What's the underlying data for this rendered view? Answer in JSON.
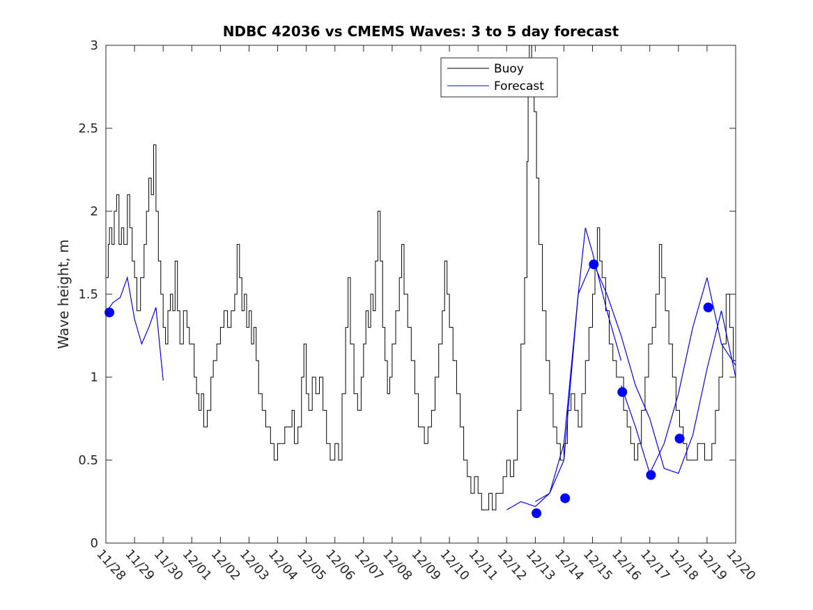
{
  "chart_data": {
    "type": "line",
    "title": "NDBC 42036 vs CMEMS Waves: 3 to 5 day forecast",
    "xlabel": "",
    "ylabel": "Wave height, m",
    "xlim": [
      "11/28",
      "12/20"
    ],
    "ylim": [
      0,
      3
    ],
    "x_ticks": [
      "11/28",
      "11/29",
      "11/30",
      "12/01",
      "12/02",
      "12/03",
      "12/04",
      "12/05",
      "12/06",
      "12/07",
      "12/08",
      "12/09",
      "12/10",
      "12/11",
      "12/12",
      "12/13",
      "12/14",
      "12/15",
      "12/16",
      "12/17",
      "12/18",
      "12/19",
      "12/20"
    ],
    "y_ticks": [
      "0",
      "0.5",
      "1",
      "1.5",
      "2",
      "2.5",
      "3"
    ],
    "grid": false,
    "legend_position": "top-right",
    "series": [
      {
        "name": "Buoy",
        "color": "#000000",
        "points": [
          [
            "11/28 00:00",
            1.6
          ],
          [
            "11/28 02:00",
            1.8
          ],
          [
            "11/28 03:00",
            1.9
          ],
          [
            "11/28 05:00",
            1.8
          ],
          [
            "11/28 07:00",
            2.0
          ],
          [
            "11/28 09:00",
            2.1
          ],
          [
            "11/28 11:00",
            1.8
          ],
          [
            "11/28 13:00",
            1.9
          ],
          [
            "11/28 15:00",
            1.8
          ],
          [
            "11/28 18:00",
            2.1
          ],
          [
            "11/28 20:00",
            1.9
          ],
          [
            "11/28 22:00",
            1.7
          ],
          [
            "11/29 00:00",
            1.6
          ],
          [
            "11/29 02:00",
            1.4
          ],
          [
            "11/29 05:00",
            1.6
          ],
          [
            "11/29 08:00",
            1.8
          ],
          [
            "11/29 10:00",
            2.0
          ],
          [
            "11/29 12:00",
            2.2
          ],
          [
            "11/29 14:00",
            2.1
          ],
          [
            "11/29 16:00",
            2.4
          ],
          [
            "11/29 18:00",
            2.0
          ],
          [
            "11/29 20:00",
            1.7
          ],
          [
            "11/29 22:00",
            1.5
          ],
          [
            "11/30 00:00",
            1.3
          ],
          [
            "11/30 02:00",
            1.2
          ],
          [
            "11/30 04:00",
            1.4
          ],
          [
            "11/30 06:00",
            1.5
          ],
          [
            "11/30 08:00",
            1.4
          ],
          [
            "11/30 10:00",
            1.7
          ],
          [
            "11/30 12:00",
            1.4
          ],
          [
            "11/30 14:00",
            1.2
          ],
          [
            "11/30 17:00",
            1.4
          ],
          [
            "11/30 20:00",
            1.3
          ],
          [
            "11/30 22:00",
            1.2
          ],
          [
            "12/01 00:00",
            1.2
          ],
          [
            "12/01 02:00",
            1.0
          ],
          [
            "12/01 04:00",
            0.9
          ],
          [
            "12/01 06:00",
            0.8
          ],
          [
            "12/01 08:00",
            0.9
          ],
          [
            "12/01 10:00",
            0.7
          ],
          [
            "12/01 13:00",
            0.8
          ],
          [
            "12/01 16:00",
            1.0
          ],
          [
            "12/01 18:00",
            1.1
          ],
          [
            "12/01 21:00",
            1.2
          ],
          [
            "12/02 00:00",
            1.3
          ],
          [
            "12/02 03:00",
            1.4
          ],
          [
            "12/02 06:00",
            1.3
          ],
          [
            "12/02 09:00",
            1.4
          ],
          [
            "12/02 12:00",
            1.5
          ],
          [
            "12/02 14:00",
            1.8
          ],
          [
            "12/02 16:00",
            1.6
          ],
          [
            "12/02 18:00",
            1.4
          ],
          [
            "12/02 20:00",
            1.5
          ],
          [
            "12/02 22:00",
            1.3
          ],
          [
            "12/03 00:00",
            1.4
          ],
          [
            "12/03 02:00",
            1.2
          ],
          [
            "12/03 04:00",
            1.3
          ],
          [
            "12/03 06:00",
            1.1
          ],
          [
            "12/03 08:00",
            0.9
          ],
          [
            "12/03 11:00",
            0.8
          ],
          [
            "12/03 14:00",
            0.7
          ],
          [
            "12/03 18:00",
            0.6
          ],
          [
            "12/03 21:00",
            0.5
          ],
          [
            "12/04 00:00",
            0.6
          ],
          [
            "12/04 03:00",
            0.6
          ],
          [
            "12/04 06:00",
            0.7
          ],
          [
            "12/04 09:00",
            0.7
          ],
          [
            "12/04 12:00",
            0.8
          ],
          [
            "12/04 14:00",
            0.6
          ],
          [
            "12/04 17:00",
            0.7
          ],
          [
            "12/04 20:00",
            1.0
          ],
          [
            "12/04 22:00",
            1.2
          ],
          [
            "12/05 00:00",
            0.9
          ],
          [
            "12/05 02:00",
            0.8
          ],
          [
            "12/05 05:00",
            1.0
          ],
          [
            "12/05 08:00",
            0.9
          ],
          [
            "12/05 11:00",
            1.0
          ],
          [
            "12/05 14:00",
            0.8
          ],
          [
            "12/05 17:00",
            0.6
          ],
          [
            "12/05 20:00",
            0.5
          ],
          [
            "12/06 00:00",
            0.6
          ],
          [
            "12/06 03:00",
            0.5
          ],
          [
            "12/06 06:00",
            0.9
          ],
          [
            "12/06 09:00",
            1.3
          ],
          [
            "12/06 11:00",
            1.6
          ],
          [
            "12/06 13:00",
            1.2
          ],
          [
            "12/06 16:00",
            0.9
          ],
          [
            "12/06 19:00",
            0.8
          ],
          [
            "12/06 22:00",
            1.0
          ],
          [
            "12/07 00:00",
            1.2
          ],
          [
            "12/07 02:00",
            1.4
          ],
          [
            "12/07 04:00",
            1.3
          ],
          [
            "12/07 06:00",
            1.5
          ],
          [
            "12/07 08:00",
            1.4
          ],
          [
            "12/07 10:00",
            1.7
          ],
          [
            "12/07 12:00",
            2.0
          ],
          [
            "12/07 14:00",
            1.7
          ],
          [
            "12/07 16:00",
            1.3
          ],
          [
            "12/07 18:00",
            1.1
          ],
          [
            "12/07 20:00",
            0.9
          ],
          [
            "12/07 22:00",
            1.0
          ],
          [
            "12/08 00:00",
            1.2
          ],
          [
            "12/08 03:00",
            1.4
          ],
          [
            "12/08 06:00",
            1.6
          ],
          [
            "12/08 08:00",
            1.8
          ],
          [
            "12/08 10:00",
            1.5
          ],
          [
            "12/08 13:00",
            1.3
          ],
          [
            "12/08 16:00",
            1.1
          ],
          [
            "12/08 19:00",
            0.9
          ],
          [
            "12/08 22:00",
            0.7
          ],
          [
            "12/09 00:00",
            0.7
          ],
          [
            "12/09 03:00",
            0.6
          ],
          [
            "12/09 06:00",
            0.7
          ],
          [
            "12/09 09:00",
            0.8
          ],
          [
            "12/09 12:00",
            1.0
          ],
          [
            "12/09 15:00",
            1.2
          ],
          [
            "12/09 18:00",
            1.4
          ],
          [
            "12/09 20:00",
            1.7
          ],
          [
            "12/09 22:00",
            1.5
          ],
          [
            "12/10 00:00",
            1.3
          ],
          [
            "12/10 03:00",
            1.1
          ],
          [
            "12/10 06:00",
            0.9
          ],
          [
            "12/10 09:00",
            0.7
          ],
          [
            "12/10 12:00",
            0.5
          ],
          [
            "12/10 15:00",
            0.4
          ],
          [
            "12/10 18:00",
            0.3
          ],
          [
            "12/10 21:00",
            0.4
          ],
          [
            "12/11 00:00",
            0.3
          ],
          [
            "12/11 03:00",
            0.2
          ],
          [
            "12/11 06:00",
            0.2
          ],
          [
            "12/11 09:00",
            0.3
          ],
          [
            "12/11 12:00",
            0.2
          ],
          [
            "12/11 15:00",
            0.3
          ],
          [
            "12/11 18:00",
            0.3
          ],
          [
            "12/11 21:00",
            0.4
          ],
          [
            "12/12 00:00",
            0.5
          ],
          [
            "12/12 03:00",
            0.4
          ],
          [
            "12/12 06:00",
            0.5
          ],
          [
            "12/12 09:00",
            0.8
          ],
          [
            "12/12 12:00",
            1.2
          ],
          [
            "12/12 15:00",
            1.6
          ],
          [
            "12/12 17:00",
            2.3
          ],
          [
            "12/12 18:00",
            2.8
          ],
          [
            "12/12 19:00",
            3.0
          ],
          [
            "12/12 21:00",
            2.8
          ],
          [
            "12/12 23:00",
            2.6
          ],
          [
            "12/13 01:00",
            2.2
          ],
          [
            "12/13 03:00",
            1.8
          ],
          [
            "12/13 06:00",
            1.4
          ],
          [
            "12/13 09:00",
            1.1
          ],
          [
            "12/13 12:00",
            0.9
          ],
          [
            "12/13 15:00",
            0.7
          ],
          [
            "12/13 18:00",
            0.6
          ],
          [
            "12/13 21:00",
            0.5
          ],
          [
            "12/14 00:00",
            0.6
          ],
          [
            "12/14 03:00",
            0.8
          ],
          [
            "12/14 06:00",
            0.9
          ],
          [
            "12/14 09:00",
            0.8
          ],
          [
            "12/14 12:00",
            0.7
          ],
          [
            "12/14 15:00",
            0.9
          ],
          [
            "12/14 18:00",
            1.1
          ],
          [
            "12/14 21:00",
            1.3
          ],
          [
            "12/15 00:00",
            1.5
          ],
          [
            "12/15 02:00",
            1.7
          ],
          [
            "12/15 04:00",
            1.9
          ],
          [
            "12/15 06:00",
            1.7
          ],
          [
            "12/15 08:00",
            1.6
          ],
          [
            "12/15 11:00",
            1.4
          ],
          [
            "12/15 14:00",
            1.2
          ],
          [
            "12/15 17:00",
            1.1
          ],
          [
            "12/15 20:00",
            1.0
          ],
          [
            "12/15 23:00",
            1.0
          ],
          [
            "12/16 02:00",
            0.8
          ],
          [
            "12/16 05:00",
            0.7
          ],
          [
            "12/16 08:00",
            0.6
          ],
          [
            "12/16 11:00",
            0.5
          ],
          [
            "12/16 14:00",
            0.6
          ],
          [
            "12/16 17:00",
            0.8
          ],
          [
            "12/16 20:00",
            1.0
          ],
          [
            "12/16 23:00",
            1.2
          ],
          [
            "12/17 02:00",
            1.3
          ],
          [
            "12/17 05:00",
            1.5
          ],
          [
            "12/17 08:00",
            1.8
          ],
          [
            "12/17 10:00",
            1.6
          ],
          [
            "12/17 13:00",
            1.4
          ],
          [
            "12/17 16:00",
            1.2
          ],
          [
            "12/17 19:00",
            1.0
          ],
          [
            "12/17 22:00",
            0.8
          ],
          [
            "12/18 01:00",
            0.7
          ],
          [
            "12/18 04:00",
            0.6
          ],
          [
            "12/18 07:00",
            0.5
          ],
          [
            "12/18 10:00",
            0.5
          ],
          [
            "12/18 13:00",
            0.5
          ],
          [
            "12/18 16:00",
            0.6
          ],
          [
            "12/18 19:00",
            0.6
          ],
          [
            "12/18 22:00",
            0.5
          ],
          [
            "12/19 01:00",
            0.5
          ],
          [
            "12/19 04:00",
            0.6
          ],
          [
            "12/19 07:00",
            0.8
          ],
          [
            "12/19 10:00",
            1.0
          ],
          [
            "12/19 13:00",
            1.2
          ],
          [
            "12/19 16:00",
            1.5
          ],
          [
            "12/19 19:00",
            1.3
          ],
          [
            "12/19 22:00",
            1.1
          ],
          [
            "12/20 00:00",
            1.0
          ]
        ]
      },
      {
        "name": "Forecast",
        "color": "#0000ff",
        "segments": [
          [
            [
              "11/28 00:00",
              1.39
            ],
            [
              "11/28 06:00",
              1.45
            ],
            [
              "11/28 12:00",
              1.48
            ],
            [
              "11/28 18:00",
              1.6
            ],
            [
              "11/29 00:00",
              1.35
            ],
            [
              "11/29 06:00",
              1.2
            ],
            [
              "11/29 12:00",
              1.3
            ],
            [
              "11/29 18:00",
              1.42
            ],
            [
              "11/30 00:00",
              0.98
            ]
          ],
          [
            [
              "12/12 00:00",
              0.2
            ],
            [
              "12/12 12:00",
              0.25
            ],
            [
              "12/13 00:00",
              0.22
            ],
            [
              "12/13 12:00",
              0.3
            ],
            [
              "12/14 00:00",
              0.5
            ],
            [
              "12/14 06:00",
              1.0
            ],
            [
              "12/14 12:00",
              1.5
            ],
            [
              "12/14 18:00",
              1.9
            ],
            [
              "12/15 00:00",
              1.75
            ],
            [
              "12/15 12:00",
              1.4
            ],
            [
              "12/16 00:00",
              1.1
            ]
          ],
          [
            [
              "12/13 00:00",
              0.25
            ],
            [
              "12/13 12:00",
              0.3
            ],
            [
              "12/14 00:00",
              0.6
            ],
            [
              "12/14 12:00",
              1.5
            ],
            [
              "12/15 00:00",
              1.7
            ],
            [
              "12/15 12:00",
              1.5
            ],
            [
              "12/16 00:00",
              1.25
            ],
            [
              "12/16 12:00",
              0.95
            ],
            [
              "12/17 00:00",
              0.75
            ],
            [
              "12/17 12:00",
              0.45
            ],
            [
              "12/18 00:00",
              0.42
            ],
            [
              "12/18 12:00",
              0.65
            ],
            [
              "12/19 00:00",
              1.05
            ],
            [
              "12/19 12:00",
              1.4
            ],
            [
              "12/20 00:00",
              1.0
            ]
          ],
          [
            [
              "12/16 00:00",
              0.95
            ],
            [
              "12/16 12:00",
              0.7
            ],
            [
              "12/17 00:00",
              0.42
            ],
            [
              "12/17 12:00",
              0.6
            ],
            [
              "12/18 00:00",
              0.9
            ],
            [
              "12/18 12:00",
              1.3
            ],
            [
              "12/19 00:00",
              1.6
            ],
            [
              "12/19 12:00",
              1.2
            ],
            [
              "12/20 00:00",
              1.07
            ]
          ]
        ],
        "markers": [
          [
            "11/28 03:00",
            1.39
          ],
          [
            "12/13 01:00",
            0.18
          ],
          [
            "12/14 01:00",
            0.27
          ],
          [
            "12/15 01:00",
            1.68
          ],
          [
            "12/16 01:00",
            0.91
          ],
          [
            "12/17 01:00",
            0.41
          ],
          [
            "12/18 01:00",
            0.63
          ],
          [
            "12/19 01:00",
            1.42
          ]
        ]
      }
    ]
  }
}
